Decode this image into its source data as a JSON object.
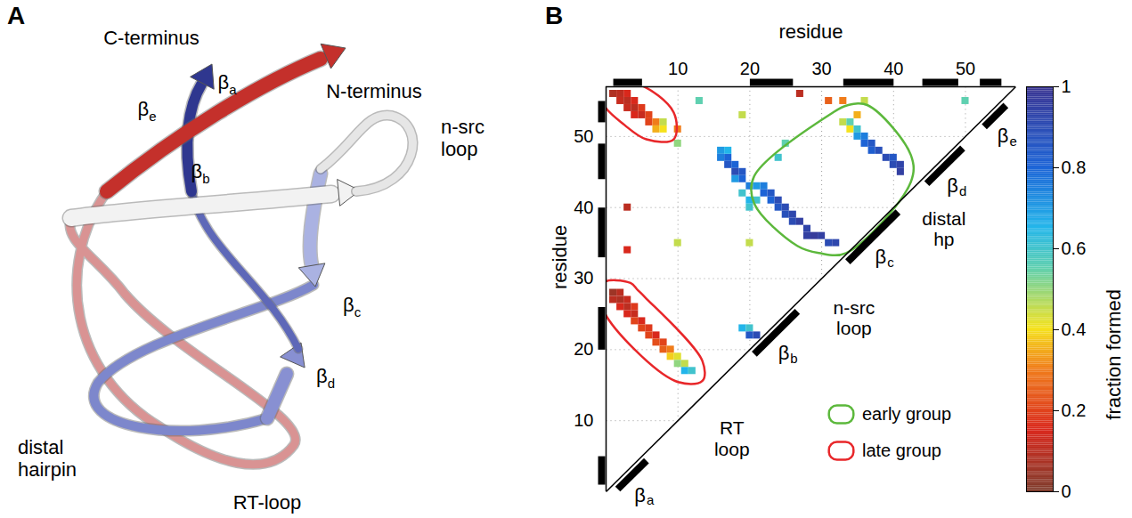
{
  "panel_a": {
    "letter": "A",
    "type": "diagram",
    "labels": [
      "C-terminus",
      "N-terminus",
      "βe",
      "βa",
      "n-src loop",
      "βb",
      "βc",
      "βd",
      "distal hairpin",
      "RT-loop"
    ]
  },
  "chart_data": {
    "letter": "B",
    "type": "heatmap",
    "x_label": "residue",
    "y_label": "residue",
    "xlim": [
      0,
      57
    ],
    "ylim": [
      0,
      57
    ],
    "xticks": [
      10,
      20,
      30,
      40,
      50
    ],
    "yticks": [
      10,
      20,
      30,
      40,
      50
    ],
    "grid": true,
    "legend": "bottom-right",
    "strands": [
      {
        "label": "βa",
        "start": 1,
        "end": 5
      },
      {
        "label": "βb",
        "start": 20,
        "end": 26
      },
      {
        "label": "βc",
        "start": 33,
        "end": 40
      },
      {
        "label": "βd",
        "start": 44,
        "end": 49
      },
      {
        "label": "βe",
        "start": 52,
        "end": 55
      }
    ],
    "loops": [
      {
        "label": "RT loop",
        "between": [
          "βa",
          "βb"
        ]
      },
      {
        "label": "n-src loop",
        "between": [
          "βb",
          "βc"
        ]
      },
      {
        "label": "distal hp",
        "between": [
          "βc",
          "βd"
        ]
      }
    ],
    "groups": [
      {
        "name": "early group",
        "color": "#5cb83c",
        "regions": [
          [
            [
              22,
              43,
              0.75
            ],
            [
              22,
              42,
              0.8
            ],
            [
              23,
              42,
              0.85
            ],
            [
              23,
              41,
              0.8
            ],
            [
              24,
              41,
              0.9
            ],
            [
              24,
              40,
              0.85
            ],
            [
              25,
              40,
              0.9
            ],
            [
              25,
              39,
              0.88
            ],
            [
              26,
              39,
              0.92
            ],
            [
              26,
              38,
              0.9
            ],
            [
              27,
              38,
              0.95
            ],
            [
              28,
              37,
              0.93
            ],
            [
              28,
              36,
              0.95
            ],
            [
              29,
              36,
              0.97
            ],
            [
              30,
              36,
              0.95
            ],
            [
              31,
              35,
              0.9
            ],
            [
              32,
              35,
              0.92
            ],
            [
              33,
              52,
              0.45
            ],
            [
              34,
              52,
              0.55
            ],
            [
              35,
              53,
              0.35
            ],
            [
              34,
              51,
              0.4
            ],
            [
              35,
              51,
              0.6
            ],
            [
              35,
              50,
              0.7
            ],
            [
              36,
              50,
              0.75
            ],
            [
              36,
              49,
              0.8
            ],
            [
              37,
              49,
              0.85
            ],
            [
              37,
              48,
              0.82
            ],
            [
              38,
              48,
              0.88
            ],
            [
              39,
              47,
              0.9
            ],
            [
              40,
              47,
              0.85
            ],
            [
              40,
              46,
              0.9
            ],
            [
              41,
              46,
              0.93
            ],
            [
              41,
              45,
              0.95
            ]
          ]
        ]
      },
      {
        "name": "late group",
        "color": "#e8272a",
        "regions": [
          [
            [
              1,
              56,
              0.08
            ],
            [
              2,
              56,
              0.1
            ],
            [
              3,
              56,
              0.15
            ],
            [
              2,
              55,
              0.12
            ],
            [
              3,
              55,
              0.1
            ],
            [
              4,
              55,
              0.15
            ],
            [
              3,
              54,
              0.12
            ],
            [
              4,
              54,
              0.1
            ],
            [
              5,
              54,
              0.18
            ],
            [
              4,
              53,
              0.15
            ],
            [
              5,
              53,
              0.12
            ],
            [
              6,
              53,
              0.2
            ],
            [
              6,
              52,
              0.2
            ],
            [
              7,
              52,
              0.3
            ],
            [
              8,
              52,
              0.45
            ],
            [
              7,
              51,
              0.35
            ],
            [
              8,
              51,
              0.4
            ]
          ],
          [
            [
              1,
              28,
              0.05
            ],
            [
              2,
              28,
              0.1
            ],
            [
              1,
              27,
              0.1
            ],
            [
              2,
              27,
              0.08
            ],
            [
              3,
              27,
              0.12
            ],
            [
              2,
              26,
              0.15
            ],
            [
              3,
              26,
              0.1
            ],
            [
              4,
              26,
              0.18
            ],
            [
              3,
              25,
              0.15
            ],
            [
              4,
              25,
              0.12
            ],
            [
              4,
              24,
              0.2
            ],
            [
              5,
              24,
              0.15
            ],
            [
              5,
              23,
              0.2
            ],
            [
              6,
              23,
              0.18
            ],
            [
              6,
              22,
              0.2
            ],
            [
              7,
              22,
              0.15
            ],
            [
              7,
              21,
              0.22
            ],
            [
              8,
              21,
              0.2
            ],
            [
              8,
              20,
              0.25
            ],
            [
              9,
              20,
              0.3
            ],
            [
              9,
              19,
              0.38
            ],
            [
              10,
              19,
              0.42
            ],
            [
              10,
              18,
              0.5
            ],
            [
              11,
              18,
              0.45
            ],
            [
              11,
              17,
              0.65
            ],
            [
              12,
              17,
              0.6
            ]
          ]
        ]
      }
    ],
    "other_contacts": [
      [
        16,
        48,
        0.7
      ],
      [
        16,
        47,
        0.75
      ],
      [
        17,
        47,
        0.8
      ],
      [
        17,
        46,
        0.85
      ],
      [
        18,
        46,
        0.8
      ],
      [
        18,
        45,
        0.9
      ],
      [
        19,
        45,
        0.85
      ],
      [
        19,
        44,
        0.8
      ],
      [
        18,
        44,
        0.7
      ],
      [
        20,
        43,
        0.75
      ],
      [
        21,
        43,
        0.7
      ],
      [
        17,
        48,
        0.65
      ],
      [
        19,
        42,
        0.6
      ],
      [
        20,
        40,
        0.6
      ],
      [
        19,
        23,
        0.65
      ],
      [
        20,
        23,
        0.6
      ],
      [
        20,
        22,
        0.85
      ],
      [
        21,
        22,
        0.9
      ],
      [
        3,
        40,
        0.1
      ],
      [
        3,
        34,
        0.15
      ],
      [
        10,
        35,
        0.45
      ],
      [
        10,
        49,
        0.5
      ],
      [
        10,
        51,
        0.3
      ],
      [
        13,
        55,
        0.55
      ],
      [
        19,
        53,
        0.45
      ],
      [
        20,
        35,
        0.45
      ],
      [
        27,
        56,
        0.1
      ],
      [
        31,
        55,
        0.25
      ],
      [
        33,
        55,
        0.3
      ],
      [
        36,
        55,
        0.45
      ],
      [
        50,
        55,
        0.55
      ],
      [
        24,
        47,
        0.6
      ],
      [
        25,
        49,
        0.55
      ],
      [
        20,
        41,
        0.65
      ],
      [
        21,
        41,
        0.6
      ]
    ],
    "colorbar": {
      "label": "fraction formed",
      "range": [
        0,
        1
      ],
      "ticks": [
        0,
        0.2,
        0.4,
        0.6,
        0.8,
        1
      ]
    }
  }
}
